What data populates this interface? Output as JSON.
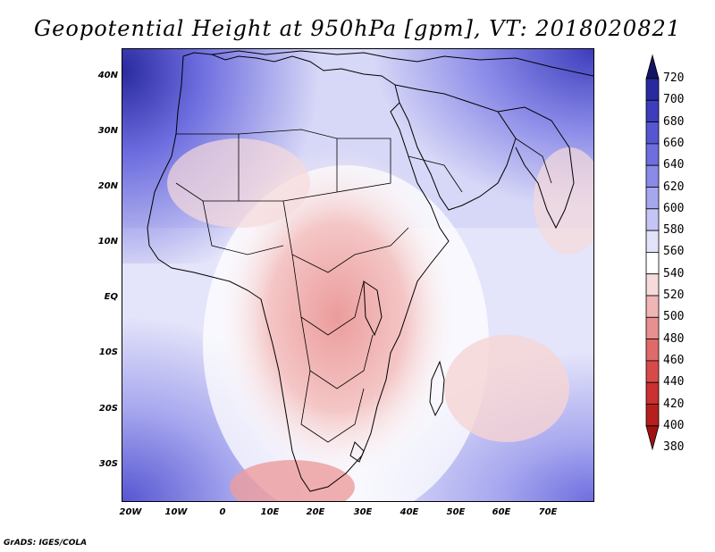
{
  "title": "Geopotential Height at 950hPa [gpm], VT: 2018020821",
  "footer": "GrADS: IGES/COLA",
  "map": {
    "lat_labels": [
      "40N",
      "30N",
      "20N",
      "10N",
      "EQ",
      "10S",
      "20S",
      "30S"
    ],
    "lon_labels": [
      "20W",
      "10W",
      "0",
      "10E",
      "20E",
      "30E",
      "40E",
      "50E",
      "60E",
      "70E"
    ]
  },
  "colorbar": {
    "levels": [
      "720",
      "700",
      "680",
      "660",
      "640",
      "620",
      "600",
      "580",
      "560",
      "540",
      "520",
      "500",
      "480",
      "460",
      "440",
      "420",
      "400",
      "380"
    ],
    "colors": [
      "#141464",
      "#2a2aa0",
      "#3d3dbd",
      "#5656d2",
      "#6e6ee0",
      "#8a8ae8",
      "#a7a7ef",
      "#c5c5f5",
      "#e2e2fa",
      "#ffffff",
      "#f7dada",
      "#f0b6b6",
      "#e89090",
      "#e06a6a",
      "#d84a4a",
      "#cc3030",
      "#b81e1e",
      "#a01212"
    ]
  }
}
